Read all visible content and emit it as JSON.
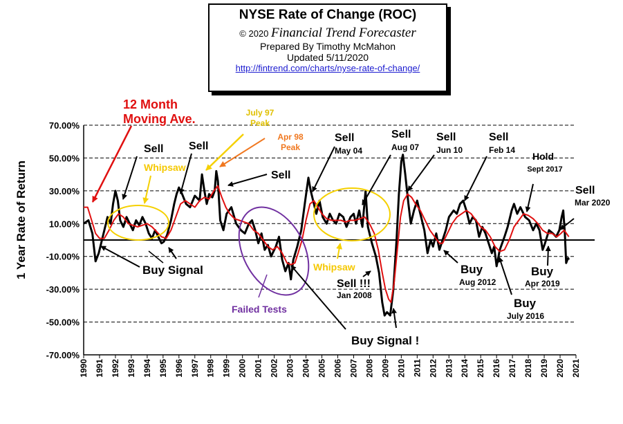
{
  "header": {
    "title": "NYSE Rate of Change (ROC)",
    "copyright": "© 2020",
    "brand": "Financial Trend Forecaster",
    "prepared_by": "Prepared By Timothy McMahon",
    "updated": "Updated 5/11/2020",
    "url": "http://fintrend.com/charts/nyse-rate-of-change/"
  },
  "colors": {
    "roc_line": "#000000",
    "moving_average": "#e01010",
    "whipsaw": "#f5d000",
    "failed_tests": "#7030a0",
    "peak_orange": "#f07820",
    "grid": "#000000"
  },
  "chart_data": {
    "type": "line",
    "ylabel": "1 Year Rate of Return",
    "xlim": [
      1990,
      2021
    ],
    "ylim": [
      -70,
      70
    ],
    "yticks": [
      {
        "v": 70,
        "label": "70.00%"
      },
      {
        "v": 50,
        "label": "50.00%"
      },
      {
        "v": 30,
        "label": "30.00%"
      },
      {
        "v": 10,
        "label": "10.00%"
      },
      {
        "v": -10,
        "label": "-10.00%"
      },
      {
        "v": -30,
        "label": "-30.00%"
      },
      {
        "v": -50,
        "label": "-50.00%"
      },
      {
        "v": -70,
        "label": "-70.00%"
      }
    ],
    "xticks": [
      "1990",
      "1991",
      "1992",
      "1993",
      "1994",
      "1995",
      "1996",
      "1997",
      "1998",
      "1999",
      "2000",
      "2001",
      "2002",
      "2003",
      "2004",
      "2005",
      "2006",
      "2007",
      "2008",
      "2009",
      "2010",
      "2011",
      "2012",
      "2013",
      "2014",
      "2015",
      "2016",
      "2017",
      "2018",
      "2019",
      "2020",
      "2021"
    ],
    "grid": true,
    "series": [
      {
        "name": "",
        "color": "#000000",
        "points": [
          [
            1990.0,
            10
          ],
          [
            1990.3,
            12
          ],
          [
            1990.55,
            4
          ],
          [
            1990.75,
            -13
          ],
          [
            1990.95,
            -8
          ],
          [
            1991.1,
            -2
          ],
          [
            1991.3,
            6
          ],
          [
            1991.5,
            14
          ],
          [
            1991.7,
            10
          ],
          [
            1991.85,
            22
          ],
          [
            1992.0,
            30
          ],
          [
            1992.15,
            24
          ],
          [
            1992.3,
            12
          ],
          [
            1992.5,
            8
          ],
          [
            1992.7,
            14
          ],
          [
            1992.9,
            10
          ],
          [
            1993.1,
            6
          ],
          [
            1993.3,
            12
          ],
          [
            1993.5,
            9
          ],
          [
            1993.7,
            14
          ],
          [
            1993.9,
            10
          ],
          [
            1994.1,
            4
          ],
          [
            1994.3,
            1
          ],
          [
            1994.5,
            6
          ],
          [
            1994.7,
            2
          ],
          [
            1994.9,
            -2
          ],
          [
            1995.05,
            -1
          ],
          [
            1995.25,
            3
          ],
          [
            1995.5,
            12
          ],
          [
            1995.7,
            22
          ],
          [
            1995.85,
            28
          ],
          [
            1996.0,
            32
          ],
          [
            1996.2,
            28
          ],
          [
            1996.45,
            22
          ],
          [
            1996.7,
            20
          ],
          [
            1997.0,
            27
          ],
          [
            1997.3,
            24
          ],
          [
            1997.45,
            40
          ],
          [
            1997.6,
            30
          ],
          [
            1997.75,
            22
          ],
          [
            1997.9,
            28
          ],
          [
            1998.1,
            26
          ],
          [
            1998.25,
            30
          ],
          [
            1998.35,
            42
          ],
          [
            1998.45,
            36
          ],
          [
            1998.6,
            12
          ],
          [
            1998.8,
            6
          ],
          [
            1999.0,
            16
          ],
          [
            1999.3,
            20
          ],
          [
            1999.6,
            10
          ],
          [
            1999.9,
            6
          ],
          [
            2000.15,
            4
          ],
          [
            2000.4,
            10
          ],
          [
            2000.6,
            12
          ],
          [
            2000.8,
            6
          ],
          [
            2001.0,
            -2
          ],
          [
            2001.2,
            4
          ],
          [
            2001.4,
            -6
          ],
          [
            2001.6,
            -3
          ],
          [
            2001.8,
            -10
          ],
          [
            2002.1,
            -4
          ],
          [
            2002.3,
            2
          ],
          [
            2002.5,
            -12
          ],
          [
            2002.7,
            -19
          ],
          [
            2002.9,
            -14
          ],
          [
            2003.05,
            -24
          ],
          [
            2003.2,
            -12
          ],
          [
            2003.45,
            -4
          ],
          [
            2003.7,
            6
          ],
          [
            2003.95,
            24
          ],
          [
            2004.15,
            38
          ],
          [
            2004.3,
            30
          ],
          [
            2004.5,
            22
          ],
          [
            2004.65,
            16
          ],
          [
            2004.85,
            24
          ],
          [
            2005.05,
            14
          ],
          [
            2005.3,
            10
          ],
          [
            2005.5,
            16
          ],
          [
            2005.7,
            12
          ],
          [
            2005.9,
            10
          ],
          [
            2006.1,
            16
          ],
          [
            2006.35,
            14
          ],
          [
            2006.55,
            8
          ],
          [
            2006.8,
            14
          ],
          [
            2007.0,
            16
          ],
          [
            2007.15,
            10
          ],
          [
            2007.35,
            18
          ],
          [
            2007.55,
            8
          ],
          [
            2007.75,
            30
          ],
          [
            2007.9,
            8
          ],
          [
            2008.15,
            -2
          ],
          [
            2008.4,
            -10
          ],
          [
            2008.6,
            -20
          ],
          [
            2008.8,
            -38
          ],
          [
            2008.95,
            -46
          ],
          [
            2009.1,
            -44
          ],
          [
            2009.3,
            -46
          ],
          [
            2009.5,
            -30
          ],
          [
            2009.7,
            0
          ],
          [
            2009.85,
            28
          ],
          [
            2010.0,
            48
          ],
          [
            2010.1,
            52
          ],
          [
            2010.25,
            40
          ],
          [
            2010.45,
            22
          ],
          [
            2010.6,
            10
          ],
          [
            2010.8,
            18
          ],
          [
            2011.0,
            24
          ],
          [
            2011.2,
            16
          ],
          [
            2011.45,
            6
          ],
          [
            2011.65,
            -8
          ],
          [
            2011.85,
            0
          ],
          [
            2012.0,
            -4
          ],
          [
            2012.2,
            4
          ],
          [
            2012.4,
            -6
          ],
          [
            2012.6,
            0
          ],
          [
            2012.8,
            6
          ],
          [
            2013.0,
            14
          ],
          [
            2013.3,
            18
          ],
          [
            2013.5,
            16
          ],
          [
            2013.7,
            22
          ],
          [
            2013.9,
            24
          ],
          [
            2014.1,
            18
          ],
          [
            2014.3,
            10
          ],
          [
            2014.5,
            14
          ],
          [
            2014.7,
            12
          ],
          [
            2014.9,
            2
          ],
          [
            2015.1,
            8
          ],
          [
            2015.3,
            4
          ],
          [
            2015.5,
            -2
          ],
          [
            2015.7,
            -8
          ],
          [
            2015.85,
            -4
          ],
          [
            2016.0,
            -16
          ],
          [
            2016.2,
            -6
          ],
          [
            2016.5,
            2
          ],
          [
            2016.7,
            8
          ],
          [
            2016.95,
            18
          ],
          [
            2017.1,
            22
          ],
          [
            2017.3,
            16
          ],
          [
            2017.5,
            20
          ],
          [
            2017.8,
            14
          ],
          [
            2018.05,
            12
          ],
          [
            2018.3,
            6
          ],
          [
            2018.5,
            10
          ],
          [
            2018.7,
            6
          ],
          [
            2018.9,
            -6
          ],
          [
            2019.05,
            -2
          ],
          [
            2019.3,
            6
          ],
          [
            2019.55,
            4
          ],
          [
            2019.75,
            2
          ],
          [
            2019.95,
            6
          ],
          [
            2020.1,
            14
          ],
          [
            2020.2,
            18
          ],
          [
            2020.3,
            4
          ],
          [
            2020.38,
            -14
          ],
          [
            2020.5,
            -11
          ],
          [
            2020.55,
            -12
          ]
        ]
      },
      {
        "name": "",
        "color": "#e01010",
        "points": [
          [
            1990.0,
            20
          ],
          [
            1990.25,
            20
          ],
          [
            1990.5,
            12
          ],
          [
            1990.75,
            4
          ],
          [
            1991.0,
            1
          ],
          [
            1991.3,
            1
          ],
          [
            1991.6,
            6
          ],
          [
            1991.9,
            12
          ],
          [
            1992.2,
            16
          ],
          [
            1992.5,
            14
          ],
          [
            1992.8,
            10
          ],
          [
            1993.1,
            9
          ],
          [
            1993.4,
            8
          ],
          [
            1993.7,
            9
          ],
          [
            1994.0,
            10
          ],
          [
            1994.3,
            8
          ],
          [
            1994.6,
            5
          ],
          [
            1994.9,
            2
          ],
          [
            1995.2,
            1
          ],
          [
            1995.5,
            6
          ],
          [
            1995.8,
            14
          ],
          [
            1996.1,
            22
          ],
          [
            1996.4,
            24
          ],
          [
            1996.7,
            22
          ],
          [
            1997.0,
            20
          ],
          [
            1997.3,
            24
          ],
          [
            1997.6,
            26
          ],
          [
            1997.9,
            25
          ],
          [
            1998.2,
            30
          ],
          [
            1998.45,
            33
          ],
          [
            1998.7,
            26
          ],
          [
            1998.95,
            20
          ],
          [
            1999.2,
            16
          ],
          [
            1999.5,
            13
          ],
          [
            1999.8,
            12
          ],
          [
            2000.1,
            11
          ],
          [
            2000.4,
            10
          ],
          [
            2000.7,
            6
          ],
          [
            2001.0,
            4
          ],
          [
            2001.3,
            0
          ],
          [
            2001.6,
            -4
          ],
          [
            2001.9,
            -6
          ],
          [
            2002.2,
            -4
          ],
          [
            2002.5,
            -8
          ],
          [
            2002.8,
            -14
          ],
          [
            2003.05,
            -15
          ],
          [
            2003.3,
            -14
          ],
          [
            2003.5,
            -8
          ],
          [
            2003.75,
            0
          ],
          [
            2004.0,
            12
          ],
          [
            2004.25,
            22
          ],
          [
            2004.5,
            24
          ],
          [
            2004.75,
            20
          ],
          [
            2005.0,
            16
          ],
          [
            2005.3,
            13
          ],
          [
            2005.6,
            12
          ],
          [
            2005.9,
            12
          ],
          [
            2006.2,
            12
          ],
          [
            2006.5,
            11
          ],
          [
            2006.8,
            12
          ],
          [
            2007.1,
            12
          ],
          [
            2007.4,
            13
          ],
          [
            2007.7,
            14
          ],
          [
            2008.0,
            10
          ],
          [
            2008.3,
            4
          ],
          [
            2008.55,
            -6
          ],
          [
            2008.8,
            -20
          ],
          [
            2009.0,
            -30
          ],
          [
            2009.2,
            -36
          ],
          [
            2009.35,
            -38
          ],
          [
            2009.55,
            -26
          ],
          [
            2009.75,
            -6
          ],
          [
            2009.95,
            14
          ],
          [
            2010.15,
            24
          ],
          [
            2010.4,
            28
          ],
          [
            2010.65,
            26
          ],
          [
            2010.9,
            22
          ],
          [
            2011.2,
            18
          ],
          [
            2011.5,
            12
          ],
          [
            2011.8,
            6
          ],
          [
            2012.1,
            2
          ],
          [
            2012.4,
            -2
          ],
          [
            2012.6,
            -2
          ],
          [
            2012.9,
            4
          ],
          [
            2013.2,
            10
          ],
          [
            2013.5,
            14
          ],
          [
            2013.8,
            16
          ],
          [
            2014.1,
            18
          ],
          [
            2014.4,
            16
          ],
          [
            2014.7,
            12
          ],
          [
            2015.0,
            8
          ],
          [
            2015.3,
            6
          ],
          [
            2015.6,
            2
          ],
          [
            2015.9,
            -4
          ],
          [
            2016.2,
            -7
          ],
          [
            2016.5,
            -6
          ],
          [
            2016.8,
            0
          ],
          [
            2017.1,
            8
          ],
          [
            2017.4,
            12
          ],
          [
            2017.7,
            16
          ],
          [
            2018.0,
            15
          ],
          [
            2018.3,
            13
          ],
          [
            2018.6,
            10
          ],
          [
            2018.9,
            6
          ],
          [
            2019.2,
            4
          ],
          [
            2019.5,
            4
          ],
          [
            2019.8,
            2
          ],
          [
            2020.05,
            4
          ],
          [
            2020.25,
            6
          ],
          [
            2020.4,
            4
          ],
          [
            2020.55,
            2
          ]
        ]
      }
    ],
    "annotations": {
      "ma_label": [
        "12 Month",
        "Moving Ave."
      ],
      "sells": [
        {
          "text": "Sell",
          "sub": ""
        },
        {
          "text": "Sell",
          "sub": ""
        },
        {
          "text": "Sell",
          "sub": ""
        },
        {
          "text": "Sell",
          "sub": "May 04"
        },
        {
          "text": "Sell",
          "sub": "Aug 07"
        },
        {
          "text": "Sell",
          "sub": "Jun 10"
        },
        {
          "text": "Sell",
          "sub": "Feb 14"
        },
        {
          "text": "Hold",
          "sub": "Sept 2017"
        },
        {
          "text": "Sell",
          "sub": "Mar 2020"
        }
      ],
      "buys": [
        {
          "text": "Buy Signal",
          "sub": ""
        },
        {
          "text": "Buy Signal !",
          "sub": ""
        },
        {
          "text": "Buy",
          "sub": "Aug 2012"
        },
        {
          "text": "Buy",
          "sub": "July 2016"
        },
        {
          "text": "Buy",
          "sub": "Apr 2019"
        }
      ],
      "sell_2008": {
        "text": "Sell !!!",
        "sub": "Jan 2008"
      },
      "peak_97": [
        "July 97",
        "Peak"
      ],
      "peak_98": [
        "Apr 98",
        "Peak"
      ],
      "whipsaw": "Whipsaw",
      "failed_tests": "Failed Tests"
    }
  }
}
